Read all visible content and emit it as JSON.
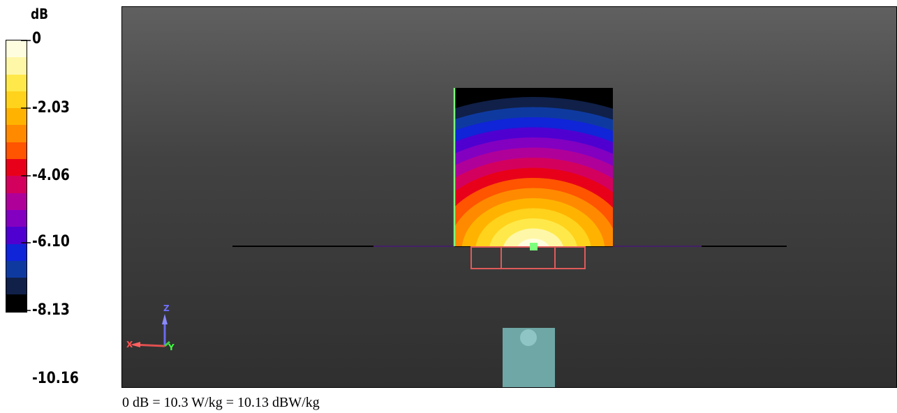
{
  "legend": {
    "unit": "dB",
    "ticks": [
      "0",
      "-2.03",
      "-4.06",
      "-6.10",
      "-8.13",
      "-10.16"
    ],
    "colors": [
      "#fffde0",
      "#fff7a8",
      "#ffe94a",
      "#ffd21c",
      "#ffb300",
      "#ff8a00",
      "#ff5400",
      "#e8001a",
      "#d4005e",
      "#b0009a",
      "#8300c0",
      "#4f00d0",
      "#1024d8",
      "#0e3aa0",
      "#102048",
      "#000000"
    ]
  },
  "caption": {
    "text": "0 dB = 10.3 W/kg = 10.13 dBW/kg"
  },
  "axes": {
    "z_label": "Z",
    "x_label": "X",
    "y_label": "Y"
  },
  "colors": {
    "viewport_top": "#606060",
    "viewport_bottom": "#2f2f2f",
    "probe_frame": "#e05a5a",
    "phantom_block": "#6fa6a6",
    "green_marker": "#7cff7c"
  }
}
